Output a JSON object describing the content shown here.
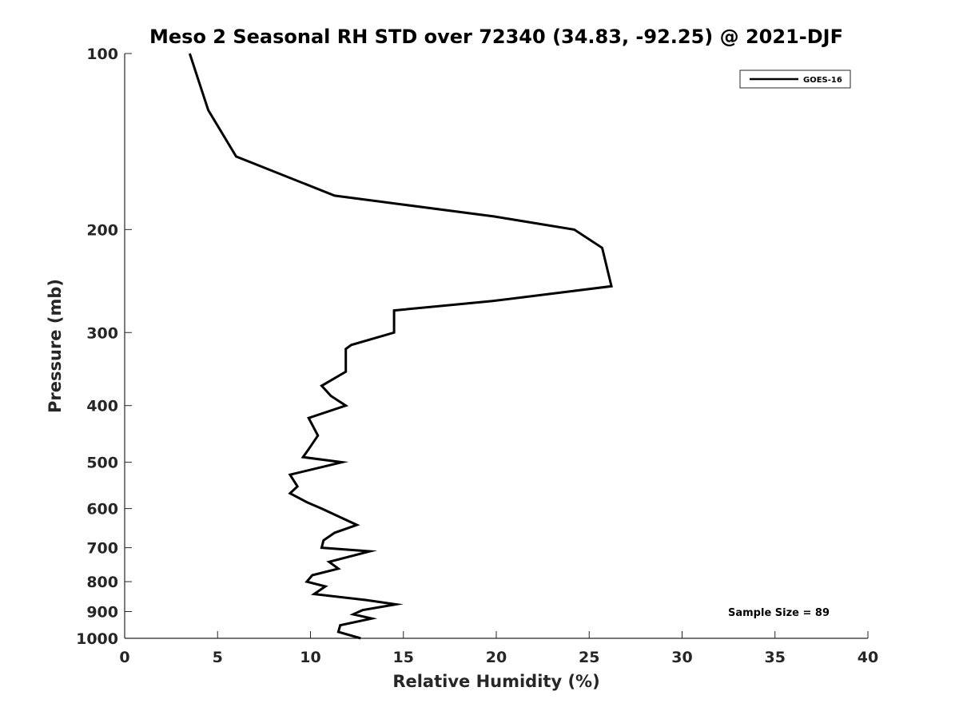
{
  "chart_data": {
    "type": "line",
    "title": "Meso 2 Seasonal RH STD over 72340 (34.83, -92.25) @ 2021-DJF",
    "xlabel": "Relative Humidity (%)",
    "ylabel": "Pressure (mb)",
    "xlim": [
      0,
      40
    ],
    "ylim": [
      100,
      1000
    ],
    "yscale": "log",
    "yreversed": true,
    "grid": false,
    "legend_position": "top-right",
    "xticks": [
      0,
      5,
      10,
      15,
      20,
      25,
      30,
      35,
      40
    ],
    "yticks": [
      100,
      200,
      300,
      400,
      500,
      600,
      700,
      800,
      900,
      1000
    ],
    "series": [
      {
        "name": "GOES-16",
        "color": "#000000",
        "points": [
          [
            3.5,
            100
          ],
          [
            4.5,
            125
          ],
          [
            6.0,
            150
          ],
          [
            11.3,
            175
          ],
          [
            19.9,
            190
          ],
          [
            24.2,
            200
          ],
          [
            25.7,
            215
          ],
          [
            26.2,
            250
          ],
          [
            19.8,
            265
          ],
          [
            14.5,
            275
          ],
          [
            14.5,
            300
          ],
          [
            12.2,
            315
          ],
          [
            11.9,
            320
          ],
          [
            11.9,
            350
          ],
          [
            10.6,
            370
          ],
          [
            11.1,
            385
          ],
          [
            11.9,
            400
          ],
          [
            9.9,
            420
          ],
          [
            10.4,
            450
          ],
          [
            9.9,
            475
          ],
          [
            9.6,
            490
          ],
          [
            11.7,
            500
          ],
          [
            8.9,
            525
          ],
          [
            9.3,
            550
          ],
          [
            8.9,
            565
          ],
          [
            9.8,
            585
          ],
          [
            10.6,
            600
          ],
          [
            12.5,
            640
          ],
          [
            11.3,
            660
          ],
          [
            10.7,
            680
          ],
          [
            10.6,
            700
          ],
          [
            13.2,
            710
          ],
          [
            11.0,
            740
          ],
          [
            11.5,
            760
          ],
          [
            10.1,
            780
          ],
          [
            9.8,
            800
          ],
          [
            10.8,
            815
          ],
          [
            10.2,
            840
          ],
          [
            13.0,
            860
          ],
          [
            14.6,
            875
          ],
          [
            12.8,
            895
          ],
          [
            12.3,
            910
          ],
          [
            13.3,
            925
          ],
          [
            11.6,
            950
          ],
          [
            11.5,
            975
          ],
          [
            12.7,
            1000
          ]
        ]
      }
    ],
    "annotations": [
      {
        "text": "Sample Size = 89"
      }
    ]
  }
}
